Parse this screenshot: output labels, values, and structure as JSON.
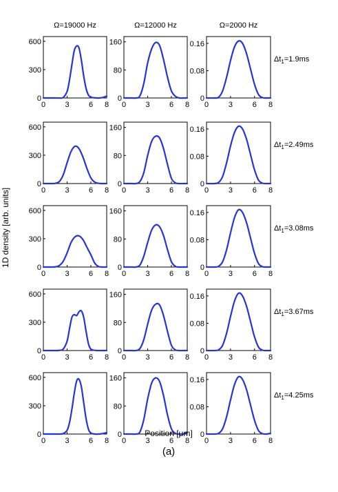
{
  "figure": {
    "xlabel": "Position [μm]",
    "ylabel": "1D density [arb. units]",
    "caption": "(a)",
    "line_color": "#2233dd"
  },
  "chart_data": {
    "type": "line",
    "grid": false,
    "column_titles": [
      "Ω=19000 Hz",
      "Ω=12000 Hz",
      "Ω=2000 Hz"
    ],
    "row_labels": [
      "1.9ms",
      "2.49ms",
      "3.08ms",
      "3.67ms",
      "4.25ms"
    ],
    "row_label_prefix": "Δt",
    "row_label_sub": "1",
    "xlim": [
      0,
      8
    ],
    "xticks": [
      0,
      3,
      6,
      8
    ],
    "columns": [
      {
        "ylim": [
          0,
          650
        ],
        "yticks": [
          0,
          300,
          600
        ],
        "ytick_labels": [
          "0",
          "300",
          "600"
        ]
      },
      {
        "ylim": [
          0,
          175
        ],
        "yticks": [
          0,
          80,
          160
        ],
        "ytick_labels": [
          "0",
          "80",
          "160"
        ]
      },
      {
        "ylim": [
          0,
          0.18
        ],
        "yticks": [
          0,
          0.08,
          0.16
        ],
        "ytick_labels": [
          "0",
          "0.08",
          "0.16"
        ]
      }
    ],
    "panels": [
      [
        {
          "x": [
            0,
            1,
            1.5,
            2,
            2.5,
            3,
            3.3,
            3.6,
            3.9,
            4.2,
            4.5,
            4.8,
            5.1,
            5.4,
            5.7,
            6,
            6.5,
            7,
            7.5,
            8
          ],
          "y": [
            0,
            0,
            0,
            0,
            5,
            70,
            190,
            350,
            500,
            550,
            530,
            400,
            230,
            100,
            30,
            8,
            2,
            0,
            5,
            20
          ]
        },
        {
          "x": [
            0,
            1,
            1.5,
            2,
            2.5,
            3,
            3.5,
            4,
            4.5,
            5,
            5.5,
            6,
            6.5,
            7,
            7.5,
            8
          ],
          "y": [
            0,
            0,
            0,
            5,
            40,
            100,
            140,
            158,
            150,
            110,
            60,
            20,
            5,
            0,
            0,
            0
          ]
        },
        {
          "x": [
            0,
            1,
            1.5,
            2,
            2.5,
            3,
            3.5,
            4,
            4.5,
            5,
            5.5,
            6,
            6.5,
            7,
            7.5,
            8
          ],
          "y": [
            0,
            0,
            0.002,
            0.02,
            0.06,
            0.11,
            0.15,
            0.167,
            0.16,
            0.13,
            0.085,
            0.04,
            0.01,
            0.001,
            0,
            0
          ]
        }
      ],
      [
        {
          "x": [
            0,
            1,
            1.5,
            2,
            2.5,
            3,
            3.5,
            4,
            4.5,
            5,
            5.5,
            6,
            6.5,
            7,
            7.5,
            8
          ],
          "y": [
            0,
            0,
            2,
            20,
            90,
            220,
            340,
            395,
            370,
            280,
            160,
            60,
            15,
            2,
            0,
            0
          ]
        },
        {
          "x": [
            0,
            1,
            1.5,
            2,
            2.5,
            3,
            3.5,
            4,
            4.5,
            5,
            5.5,
            6,
            6.5,
            7,
            7.5,
            8
          ],
          "y": [
            0,
            0,
            0,
            5,
            30,
            80,
            120,
            135,
            130,
            100,
            55,
            15,
            2,
            0,
            0,
            0
          ]
        },
        {
          "x": [
            0,
            1,
            1.5,
            2,
            2.5,
            3,
            3.5,
            4,
            4.5,
            5,
            5.5,
            6,
            6.5,
            7,
            7.5,
            8
          ],
          "y": [
            0,
            0,
            0.003,
            0.02,
            0.06,
            0.11,
            0.15,
            0.168,
            0.16,
            0.13,
            0.085,
            0.04,
            0.01,
            0.001,
            0,
            0
          ]
        }
      ],
      [
        {
          "x": [
            0,
            1,
            1.5,
            2,
            2.5,
            3,
            3.5,
            4,
            4.5,
            5,
            5.5,
            6,
            6.5,
            7,
            7.5,
            8
          ],
          "y": [
            0,
            0,
            2,
            15,
            60,
            150,
            260,
            320,
            330,
            290,
            210,
            130,
            40,
            5,
            0,
            0
          ]
        },
        {
          "x": [
            0,
            1,
            1.5,
            2,
            2.5,
            3,
            3.5,
            4,
            4.5,
            5,
            5.5,
            6,
            6.5,
            7,
            7.5,
            8
          ],
          "y": [
            0,
            0,
            0,
            5,
            30,
            70,
            105,
            120,
            115,
            90,
            50,
            15,
            2,
            0,
            0,
            0
          ]
        },
        {
          "x": [
            0,
            1,
            1.5,
            2,
            2.5,
            3,
            3.5,
            4,
            4.5,
            5,
            5.5,
            6,
            6.5,
            7,
            7.5,
            8
          ],
          "y": [
            0,
            0,
            0.002,
            0.015,
            0.05,
            0.1,
            0.145,
            0.168,
            0.16,
            0.13,
            0.085,
            0.04,
            0.01,
            0.001,
            0,
            0
          ]
        }
      ],
      [
        {
          "x": [
            0,
            1,
            1.5,
            2,
            2.5,
            3,
            3.3,
            3.6,
            3.9,
            4.2,
            4.5,
            4.8,
            5.1,
            5.4,
            5.7,
            6,
            6.5,
            7,
            7.5,
            8
          ],
          "y": [
            0,
            0,
            0,
            2,
            15,
            100,
            230,
            350,
            380,
            370,
            410,
            420,
            350,
            200,
            70,
            15,
            2,
            0,
            0,
            0
          ]
        },
        {
          "x": [
            0,
            1,
            1.5,
            2,
            2.5,
            3,
            3.5,
            4,
            4.5,
            5,
            5.5,
            6,
            6.5,
            7,
            7.5,
            8
          ],
          "y": [
            0,
            0,
            0,
            5,
            30,
            75,
            115,
            132,
            130,
            100,
            55,
            15,
            2,
            0,
            0,
            0
          ]
        },
        {
          "x": [
            0,
            1,
            1.5,
            2,
            2.5,
            3,
            3.5,
            4,
            4.5,
            5,
            5.5,
            6,
            6.5,
            7,
            7.5,
            8
          ],
          "y": [
            0,
            0,
            0.002,
            0.015,
            0.05,
            0.1,
            0.145,
            0.168,
            0.16,
            0.13,
            0.085,
            0.04,
            0.01,
            0.001,
            0,
            0
          ]
        }
      ],
      [
        {
          "x": [
            0,
            1,
            1.5,
            2,
            2.5,
            3,
            3.3,
            3.6,
            3.9,
            4.2,
            4.5,
            4.8,
            5.1,
            5.4,
            5.7,
            6,
            6.5,
            7,
            7.5,
            8
          ],
          "y": [
            0,
            0,
            0,
            0,
            5,
            40,
            120,
            260,
            430,
            560,
            580,
            500,
            330,
            160,
            50,
            10,
            0,
            0,
            5,
            15
          ]
        },
        {
          "x": [
            0,
            1,
            1.5,
            2,
            2.5,
            3,
            3.5,
            4,
            4.5,
            5,
            5.5,
            6,
            6.5,
            7,
            7.5,
            8
          ],
          "y": [
            0,
            0,
            0,
            5,
            40,
            100,
            145,
            160,
            150,
            110,
            55,
            15,
            2,
            0,
            0,
            5
          ]
        },
        {
          "x": [
            0,
            1,
            1.5,
            2,
            2.5,
            3,
            3.5,
            4,
            4.5,
            5,
            5.5,
            6,
            6.5,
            7,
            7.5,
            8
          ],
          "y": [
            0,
            0,
            0.002,
            0.015,
            0.05,
            0.1,
            0.145,
            0.168,
            0.16,
            0.13,
            0.085,
            0.04,
            0.01,
            0.001,
            0,
            0.002
          ]
        }
      ]
    ]
  }
}
